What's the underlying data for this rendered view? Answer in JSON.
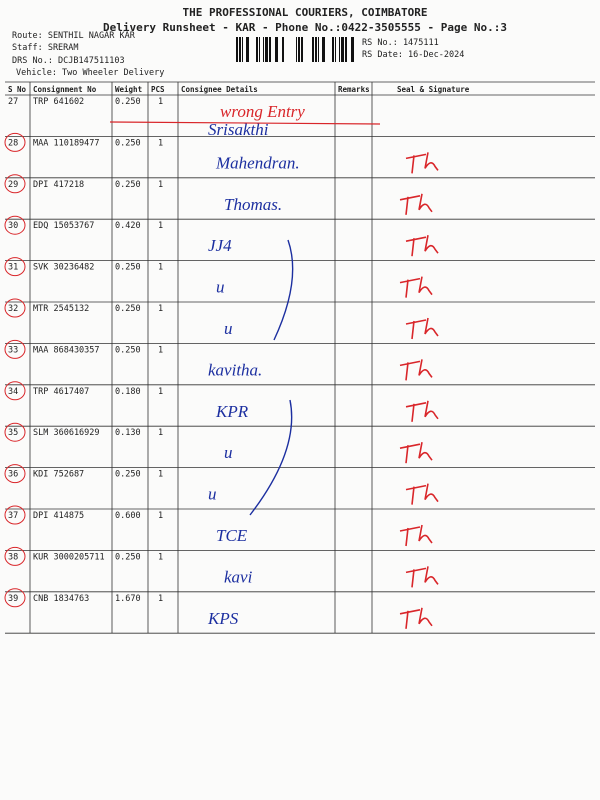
{
  "header": {
    "title": "THE PROFESSIONAL COURIERS, COIMBATORE",
    "subtitle": "Delivery Runsheet - KAR - Phone No.:0422-3505555 - Page No.:3",
    "route": "Route: SENTHIL NAGAR KAR",
    "staff": "Staff: SRERAM",
    "drs_no": "DRS No.: DCJB147511103",
    "vehicle": "Vehicle: Two Wheeler Delivery",
    "rs_no": "RS No.: 1475111",
    "rs_date": "RS Date: 16-Dec-2024"
  },
  "table": {
    "columns": [
      "S No",
      "Consignment No",
      "Weight",
      "PCS",
      "Consignee Details",
      "Remarks",
      "Seal & Signature"
    ],
    "rows": [
      [
        "27",
        "TRP 641602",
        "0.250",
        "1"
      ],
      [
        "28",
        "MAA 110189477",
        "0.250",
        "1"
      ],
      [
        "29",
        "DPI 417218",
        "0.250",
        "1"
      ],
      [
        "30",
        "EDQ 15053767",
        "0.420",
        "1"
      ],
      [
        "31",
        "SVK 30236482",
        "0.250",
        "1"
      ],
      [
        "32",
        "MTR 2545132",
        "0.250",
        "1"
      ],
      [
        "33",
        "MAA 868430357",
        "0.250",
        "1"
      ],
      [
        "34",
        "TRP 4617407",
        "0.180",
        "1"
      ],
      [
        "35",
        "SLM 360616929",
        "0.130",
        "1"
      ],
      [
        "36",
        "KDI 752687",
        "0.250",
        "1"
      ],
      [
        "37",
        "DPI 414875",
        "0.600",
        "1"
      ],
      [
        "38",
        "KUR 3000205711",
        "0.250",
        "1"
      ],
      [
        "39",
        "CNB 1834763",
        "1.670",
        "1"
      ]
    ],
    "handwritten": [
      "Srisakthi",
      "Mahendran.",
      "Thomas.",
      "JJ4",
      "u",
      "u",
      "kavitha.",
      "KPR",
      "u",
      "u",
      "TCE",
      "kavi",
      "KPS"
    ],
    "correction": "wrong Entry"
  }
}
